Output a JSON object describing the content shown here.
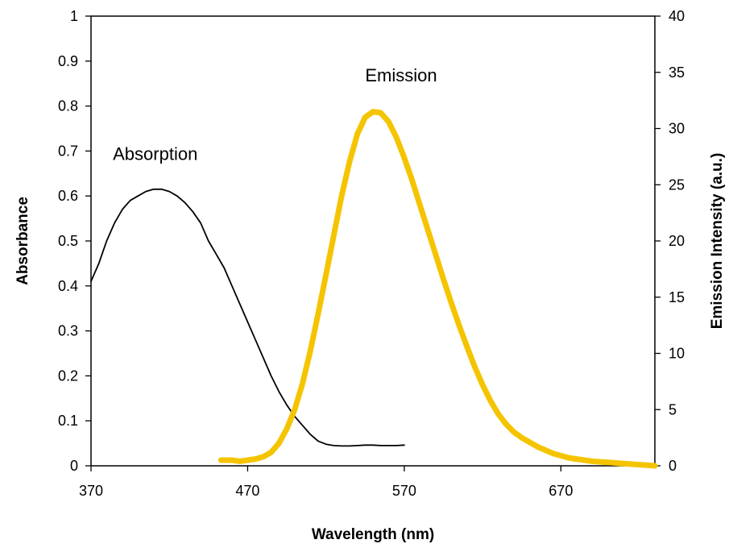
{
  "chart_data": {
    "type": "line",
    "title": "",
    "xlabel": "Wavelength (nm)",
    "ylabel_left": "Absorbance",
    "ylabel_right": "Emission Intensity (a.u.)",
    "xlim": [
      370,
      730
    ],
    "ylim_left": [
      0,
      1
    ],
    "ylim_right": [
      0,
      40
    ],
    "x_ticks": [
      370,
      470,
      570,
      670
    ],
    "y_left_ticks": [
      0,
      0.1,
      0.2,
      0.3,
      0.4,
      0.5,
      0.6,
      0.7,
      0.8,
      0.9,
      1
    ],
    "y_right_ticks": [
      0,
      5,
      10,
      15,
      20,
      25,
      30,
      35,
      40
    ],
    "grid": false,
    "legend": "none",
    "series": [
      {
        "name": "Absorption",
        "axis": "left",
        "color": "#000000",
        "x": [
          370,
          375,
          380,
          385,
          390,
          395,
          400,
          405,
          410,
          415,
          420,
          425,
          430,
          435,
          440,
          445,
          450,
          455,
          460,
          465,
          470,
          475,
          480,
          485,
          490,
          495,
          500,
          505,
          510,
          515,
          520,
          525,
          530,
          535,
          540,
          545,
          550,
          555,
          560,
          565,
          570
        ],
        "y": [
          0.41,
          0.45,
          0.5,
          0.54,
          0.57,
          0.59,
          0.6,
          0.61,
          0.615,
          0.615,
          0.61,
          0.6,
          0.585,
          0.565,
          0.54,
          0.5,
          0.47,
          0.44,
          0.4,
          0.36,
          0.32,
          0.28,
          0.24,
          0.2,
          0.165,
          0.135,
          0.11,
          0.09,
          0.07,
          0.055,
          0.048,
          0.045,
          0.044,
          0.044,
          0.045,
          0.046,
          0.046,
          0.045,
          0.045,
          0.045,
          0.046
        ]
      },
      {
        "name": "Emission",
        "axis": "right",
        "color": "#f5c400",
        "x": [
          453,
          460,
          465,
          470,
          475,
          480,
          485,
          490,
          495,
          500,
          505,
          510,
          515,
          520,
          525,
          530,
          535,
          540,
          545,
          550,
          555,
          560,
          565,
          570,
          575,
          580,
          585,
          590,
          595,
          600,
          605,
          610,
          615,
          620,
          625,
          630,
          635,
          640,
          645,
          650,
          655,
          660,
          665,
          670,
          675,
          680,
          685,
          690,
          695,
          700,
          705,
          710,
          715,
          720,
          725,
          730
        ],
        "y": [
          0.5,
          0.5,
          0.4,
          0.5,
          0.6,
          0.8,
          1.2,
          2.0,
          3.3,
          5.0,
          7.3,
          10.2,
          13.5,
          17.0,
          20.5,
          24.0,
          27.0,
          29.5,
          31.0,
          31.5,
          31.4,
          30.6,
          29.2,
          27.4,
          25.4,
          23.2,
          21.0,
          18.8,
          16.6,
          14.5,
          12.5,
          10.6,
          8.8,
          7.2,
          5.8,
          4.6,
          3.7,
          3.0,
          2.5,
          2.1,
          1.7,
          1.4,
          1.1,
          0.9,
          0.7,
          0.6,
          0.5,
          0.4,
          0.35,
          0.3,
          0.25,
          0.2,
          0.15,
          0.1,
          0.05,
          0.0
        ]
      }
    ],
    "annotations": [
      {
        "text": "Absorption",
        "x": 411,
        "y_left": 0.68
      },
      {
        "text": "Emission",
        "x": 568,
        "y_left": 0.855
      }
    ]
  }
}
